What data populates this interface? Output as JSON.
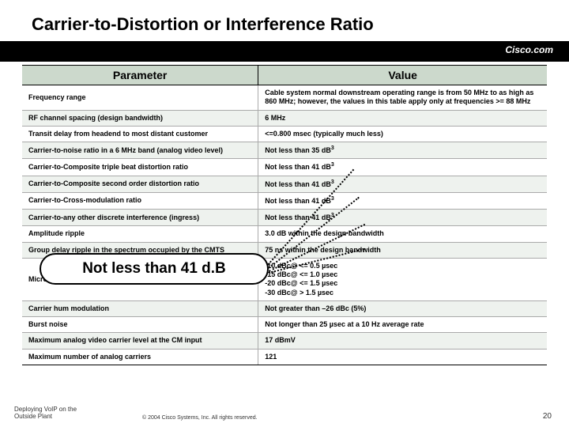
{
  "title": "Carrier-to-Distortion or Interference Ratio",
  "brand": "Cisco.com",
  "columns": [
    "Parameter",
    "Value"
  ],
  "rows": [
    {
      "p": "Frequency range",
      "v": "Cable system normal downstream operating range is from 50 MHz to as high as 860 MHz; however, the values in this table apply only at frequencies >= 88 MHz"
    },
    {
      "p": "RF channel spacing (design bandwidth)",
      "v": "6 MHz"
    },
    {
      "p": "Transit delay from headend to most distant customer",
      "v": "<=0.800 msec (typically much less)"
    },
    {
      "p": "Carrier-to-noise ratio in a 6 MHz band (analog video level)",
      "v": "Not less than 35 dB",
      "sup": "3"
    },
    {
      "p": "Carrier-to-Composite triple beat distortion ratio",
      "v": "Not less than 41 dB",
      "sup": "3"
    },
    {
      "p": "Carrier-to-Composite second order distortion ratio",
      "v": "Not less than 41 dB",
      "sup": "3"
    },
    {
      "p": "Carrier-to-Cross-modulation ratio",
      "v": "Not less than 41 dB",
      "sup": "3"
    },
    {
      "p": "Carrier-to-any other discrete interference (ingress)",
      "v": "Not less than 41 dB",
      "sup": "3"
    },
    {
      "p": "Amplitude ripple",
      "v": "3.0 dB within the design bandwidth"
    },
    {
      "p": "Group delay ripple in the spectrum occupied by the CMTS",
      "v": "75 ns within the design bandwidth"
    },
    {
      "p": "Micro-reflections bound for dominant echo",
      "v": "-10 dBc@ <= 0.5 µsec\n-15 dBc@ <= 1.0 µsec\n-20 dBc@ <= 1.5 µsec\n-30 dBc@ > 1.5 µsec"
    },
    {
      "p": "Carrier hum modulation",
      "v": "Not greater than –26 dBc (5%)"
    },
    {
      "p": "Burst noise",
      "v": "Not longer than 25 µsec at a 10 Hz average rate"
    },
    {
      "p": "Maximum analog video carrier level at the CM input",
      "v": "17 dBmV"
    },
    {
      "p": "Maximum number of analog carriers",
      "v": "121"
    }
  ],
  "callout": "Not less than 41 d.B",
  "footer_line1": "Deploying VoIP on the",
  "footer_line2": "Outside Plant",
  "copyright": "© 2004 Cisco Systems, Inc. All rights reserved.",
  "page": "20",
  "colors": {
    "header_bg": "#ccd9cc",
    "alt_bg": "#eef2ee"
  }
}
